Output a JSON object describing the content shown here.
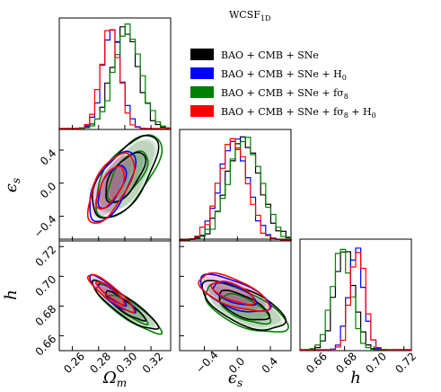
{
  "chart_data": {
    "type": "corner",
    "title": "WCSF",
    "title_sub": "1D",
    "parameters": [
      {
        "key": "om",
        "label": "Ω",
        "sub": "m",
        "range": [
          0.25,
          0.335
        ],
        "ticks": [
          "0.26",
          "0.28",
          "0.30",
          "0.32"
        ],
        "tick_values": [
          0.26,
          0.28,
          0.3,
          0.32
        ]
      },
      {
        "key": "es",
        "label": "ϵ",
        "sub": "s",
        "range": [
          -0.7,
          0.65
        ],
        "ticks": [
          "−0.4",
          "0.0",
          "0.4"
        ],
        "tick_values": [
          -0.4,
          0.0,
          0.4
        ]
      },
      {
        "key": "h",
        "label": "h",
        "sub": "",
        "range": [
          0.65,
          0.725
        ],
        "ticks": [
          "0.66",
          "0.68",
          "0.70",
          "0.72"
        ],
        "tick_values": [
          0.66,
          0.68,
          0.7,
          0.72
        ]
      }
    ],
    "row_ticks": {
      "es": {
        "ticks": [
          "−0.4",
          "0.0",
          "0.4"
        ],
        "tick_values": [
          -0.4,
          0.0,
          0.4
        ]
      },
      "h": {
        "ticks": [
          "0.66",
          "0.68",
          "0.70",
          "0.72"
        ],
        "tick_values": [
          0.66,
          0.68,
          0.7,
          0.72
        ]
      }
    },
    "series": [
      {
        "name": "BAO + CMB + SNe",
        "color": "#000000",
        "mean": [
          0.3,
          0.07,
          0.68
        ],
        "sigma": [
          0.01,
          0.2,
          0.0065
        ],
        "corr": {
          "om_es": 0.65,
          "om_h": -0.9,
          "es_h": -0.65
        }
      },
      {
        "name": "BAO + CMB + SNe + H",
        "name_sub": "0",
        "color": "#0000ff",
        "mean": [
          0.29,
          -0.04,
          0.688
        ],
        "sigma": [
          0.007,
          0.17,
          0.005
        ],
        "corr": {
          "om_es": 0.65,
          "om_h": -0.9,
          "es_h": -0.65
        }
      },
      {
        "name": "BAO + CMB + SNe + fσ",
        "name_sub": "8",
        "color": "#008000",
        "mean": [
          0.302,
          0.09,
          0.678
        ],
        "sigma": [
          0.01,
          0.2,
          0.0065
        ],
        "corr": {
          "om_es": 0.65,
          "om_h": -0.9,
          "es_h": -0.65
        }
      },
      {
        "name": "BAO + CMB + SNe + fσ",
        "name_sub": "8",
        "name_tail": " + H",
        "name_tail_sub": "0",
        "color": "#ff0000",
        "mean": [
          0.289,
          -0.05,
          0.689
        ],
        "sigma": [
          0.007,
          0.17,
          0.005
        ],
        "corr": {
          "om_es": 0.65,
          "om_h": -0.9,
          "es_h": -0.65
        }
      }
    ],
    "legend_position": "top-right"
  }
}
